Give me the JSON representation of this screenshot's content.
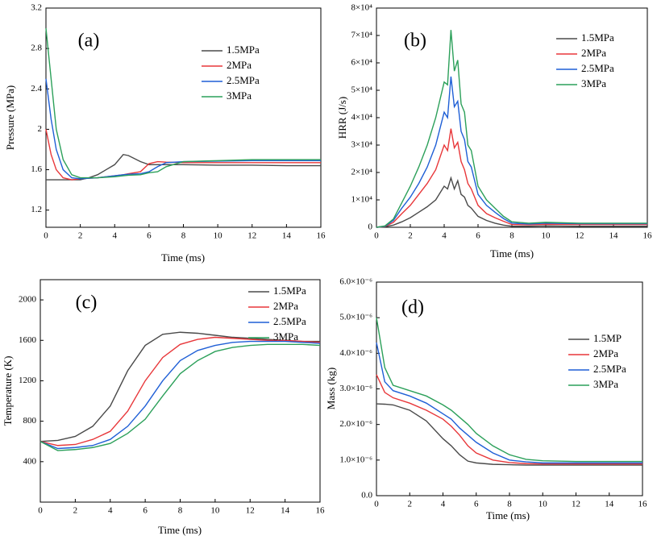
{
  "chart_data": [
    {
      "type": "line",
      "annotation": "(a)",
      "xlabel": "Time (ms)",
      "ylabel": "Pressure (MPa)",
      "xlim": [
        0,
        16
      ],
      "xticks": [
        0,
        2,
        4,
        6,
        8,
        10,
        12,
        14,
        16
      ],
      "ylim": [
        1.03,
        3.2
      ],
      "yticks": [
        1.2,
        1.6,
        2.0,
        2.4,
        2.8,
        3.2
      ],
      "x": [
        0,
        0.3,
        0.6,
        1,
        1.5,
        2,
        2.5,
        3,
        3.5,
        4,
        4.5,
        4.8,
        5.5,
        6,
        6.5,
        7,
        8,
        10,
        12,
        14,
        16
      ],
      "series": [
        {
          "name": "1.5MPa",
          "color": "#4a4a4a",
          "values": [
            1.5,
            1.5,
            1.5,
            1.5,
            1.5,
            1.5,
            1.52,
            1.55,
            1.6,
            1.65,
            1.75,
            1.74,
            1.68,
            1.65,
            1.65,
            1.65,
            1.65,
            1.645,
            1.645,
            1.64,
            1.64
          ]
        },
        {
          "name": "2MPa",
          "color": "#e8373a",
          "values": [
            2.0,
            1.75,
            1.6,
            1.52,
            1.5,
            1.51,
            1.515,
            1.52,
            1.53,
            1.54,
            1.55,
            1.56,
            1.58,
            1.66,
            1.68,
            1.675,
            1.67,
            1.67,
            1.67,
            1.67,
            1.67
          ]
        },
        {
          "name": "2.5MPa",
          "color": "#1f5fd6",
          "values": [
            2.5,
            2.1,
            1.8,
            1.6,
            1.52,
            1.51,
            1.515,
            1.52,
            1.53,
            1.54,
            1.55,
            1.555,
            1.56,
            1.58,
            1.63,
            1.67,
            1.68,
            1.685,
            1.69,
            1.69,
            1.69
          ]
        },
        {
          "name": "3MPa",
          "color": "#2ca05a",
          "values": [
            3.0,
            2.5,
            2.0,
            1.7,
            1.55,
            1.52,
            1.52,
            1.52,
            1.525,
            1.53,
            1.54,
            1.545,
            1.55,
            1.57,
            1.58,
            1.63,
            1.68,
            1.69,
            1.7,
            1.7,
            1.7
          ]
        }
      ]
    },
    {
      "type": "line",
      "annotation": "(b)",
      "xlabel": "Time (ms)",
      "ylabel": "HRR (J/s)",
      "xlim": [
        0,
        16
      ],
      "xticks": [
        0,
        2,
        4,
        6,
        8,
        10,
        12,
        14,
        16
      ],
      "ylim": [
        0,
        80000
      ],
      "yticks": [
        0,
        {
          "value": 10000,
          "label": "1×10⁴"
        },
        {
          "value": 20000,
          "label": "2×10⁴"
        },
        {
          "value": 30000,
          "label": "3×10⁴"
        },
        {
          "value": 40000,
          "label": "4×10⁴"
        },
        {
          "value": 50000,
          "label": "5×10⁴"
        },
        {
          "value": 60000,
          "label": "6×10⁴"
        },
        {
          "value": 70000,
          "label": "7×10⁴"
        },
        {
          "value": 80000,
          "label": "8×10⁴"
        }
      ],
      "x": [
        0,
        0.5,
        1,
        1.5,
        2,
        2.5,
        3,
        3.5,
        4,
        4.2,
        4.4,
        4.6,
        4.8,
        5,
        5.2,
        5.4,
        5.6,
        6,
        6.5,
        7,
        7.5,
        8,
        9,
        10,
        12,
        14,
        16
      ],
      "series": [
        {
          "name": "1.5MPa",
          "color": "#4a4a4a",
          "values": [
            0,
            200,
            800,
            2000,
            3500,
            5500,
            7500,
            10000,
            15000,
            14000,
            18000,
            14000,
            17000,
            12000,
            11000,
            8000,
            7000,
            4000,
            2500,
            1500,
            800,
            400,
            400,
            500,
            400,
            400,
            400
          ]
        },
        {
          "name": "2MPa",
          "color": "#e8373a",
          "values": [
            0,
            300,
            1800,
            5000,
            8000,
            12000,
            16000,
            21000,
            30000,
            28000,
            36000,
            29000,
            31000,
            24000,
            21000,
            16000,
            14000,
            8000,
            5000,
            3500,
            2200,
            1000,
            900,
            1100,
            1000,
            1000,
            1000
          ]
        },
        {
          "name": "2.5MPa",
          "color": "#1f5fd6",
          "values": [
            0,
            400,
            2500,
            7000,
            11000,
            16000,
            22000,
            30000,
            42000,
            40000,
            55000,
            44000,
            46000,
            35000,
            32000,
            24000,
            22000,
            12000,
            8000,
            5500,
            3200,
            1500,
            1200,
            1500,
            1300,
            1300,
            1300
          ]
        },
        {
          "name": "3MPa",
          "color": "#2ca05a",
          "values": [
            0,
            500,
            3000,
            9000,
            15000,
            22000,
            30000,
            40000,
            53000,
            52000,
            72000,
            57000,
            61000,
            45000,
            42000,
            30000,
            28000,
            15000,
            10000,
            7000,
            4000,
            2000,
            1500,
            1800,
            1500,
            1500,
            1500
          ]
        }
      ]
    },
    {
      "type": "line",
      "annotation": "(c)",
      "xlabel": "Time (ms)",
      "ylabel": "Temperature (K)",
      "xlim": [
        0,
        16
      ],
      "xticks": [
        0,
        2,
        4,
        6,
        8,
        10,
        12,
        14,
        16
      ],
      "ylim": [
        0,
        2200
      ],
      "yticks": [
        400,
        800,
        1200,
        1600,
        2000
      ],
      "x": [
        0,
        1,
        2,
        3,
        4,
        5,
        6,
        7,
        8,
        9,
        10,
        11,
        12,
        13,
        14,
        15,
        16
      ],
      "series": [
        {
          "name": "1.5MPa",
          "color": "#4a4a4a",
          "values": [
            600,
            610,
            650,
            750,
            950,
            1300,
            1550,
            1660,
            1680,
            1670,
            1650,
            1630,
            1620,
            1610,
            1600,
            1590,
            1590
          ]
        },
        {
          "name": "2MPa",
          "color": "#e8373a",
          "values": [
            600,
            560,
            570,
            620,
            700,
            900,
            1200,
            1430,
            1560,
            1610,
            1630,
            1620,
            1610,
            1600,
            1600,
            1590,
            1580
          ]
        },
        {
          "name": "2.5MPa",
          "color": "#1f5fd6",
          "values": [
            600,
            530,
            540,
            560,
            620,
            750,
            950,
            1200,
            1400,
            1500,
            1550,
            1580,
            1590,
            1590,
            1590,
            1580,
            1570
          ]
        },
        {
          "name": "3MPa",
          "color": "#2ca05a",
          "values": [
            600,
            510,
            520,
            540,
            580,
            680,
            820,
            1050,
            1270,
            1400,
            1490,
            1530,
            1550,
            1560,
            1560,
            1560,
            1550
          ]
        }
      ]
    },
    {
      "type": "line",
      "annotation": "(d)",
      "xlabel": "Time (ms)",
      "ylabel": "Mass (kg)",
      "xlim": [
        0,
        16
      ],
      "xticks": [
        0,
        2,
        4,
        6,
        8,
        10,
        12,
        14,
        16
      ],
      "ylim": [
        0,
        6e-06
      ],
      "yticks": [
        {
          "value": 0,
          "label": "0.0"
        },
        {
          "value": 1e-06,
          "label": "1.0×10⁻⁶"
        },
        {
          "value": 2e-06,
          "label": "2.0×10⁻⁶"
        },
        {
          "value": 3e-06,
          "label": "3.0×10⁻⁶"
        },
        {
          "value": 4e-06,
          "label": "4.0×10⁻⁶"
        },
        {
          "value": 5e-06,
          "label": "5.0×10⁻⁶"
        },
        {
          "value": 6e-06,
          "label": "6.0×10⁻⁶"
        }
      ],
      "x": [
        0,
        0.5,
        1,
        2,
        3,
        4,
        4.5,
        5,
        5.5,
        6,
        7,
        8,
        9,
        10,
        12,
        14,
        16
      ],
      "series": [
        {
          "name": "1.5MP",
          "color": "#4a4a4a",
          "values": [
            2.58e-06,
            2.57e-06,
            2.55e-06,
            2.4e-06,
            2.1e-06,
            1.6e-06,
            1.4e-06,
            1.15e-06,
            9.7e-07,
            9.2e-07,
            8.8e-07,
            8.7e-07,
            8.6e-07,
            8.6e-07,
            8.6e-07,
            8.6e-07,
            8.6e-07
          ]
        },
        {
          "name": "2MPa",
          "color": "#e8373a",
          "values": [
            3.4e-06,
            2.9e-06,
            2.75e-06,
            2.6e-06,
            2.4e-06,
            2.15e-06,
            1.95e-06,
            1.7e-06,
            1.4e-06,
            1.2e-06,
            1e-06,
            9.3e-07,
            9e-07,
            8.9e-07,
            8.9e-07,
            8.9e-07,
            8.9e-07
          ]
        },
        {
          "name": "2.5MPa",
          "color": "#1f5fd6",
          "values": [
            4.3e-06,
            3.2e-06,
            2.95e-06,
            2.8e-06,
            2.6e-06,
            2.3e-06,
            2.15e-06,
            1.9e-06,
            1.7e-06,
            1.5e-06,
            1.2e-06,
            1e-06,
            9.5e-07,
            9.2e-07,
            9.2e-07,
            9.2e-07,
            9.2e-07
          ]
        },
        {
          "name": "3MPa",
          "color": "#2ca05a",
          "values": [
            5e-06,
            3.6e-06,
            3.1e-06,
            2.95e-06,
            2.8e-06,
            2.55e-06,
            2.4e-06,
            2.2e-06,
            2e-06,
            1.75e-06,
            1.4e-06,
            1.15e-06,
            1.02e-06,
            9.8e-07,
            9.6e-07,
            9.6e-07,
            9.6e-07
          ]
        }
      ]
    }
  ]
}
